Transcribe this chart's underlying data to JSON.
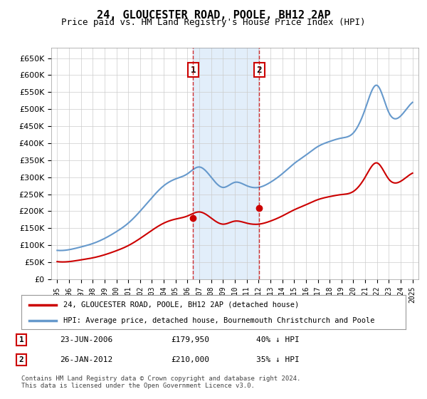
{
  "title": "24, GLOUCESTER ROAD, POOLE, BH12 2AP",
  "subtitle": "Price paid vs. HM Land Registry's House Price Index (HPI)",
  "hpi_color": "#6699cc",
  "price_color": "#cc0000",
  "background_color": "#ffffff",
  "grid_color": "#cccccc",
  "sale1_date_num": 2006.48,
  "sale2_date_num": 2012.07,
  "sale1_price": 179950,
  "sale2_price": 210000,
  "sale1_label": "1",
  "sale2_label": "2",
  "sale1_info": "23-JUN-2006    £179,950    40% ↓ HPI",
  "sale2_info": "26-JAN-2012    £210,000    35% ↓ HPI",
  "legend_line1": "24, GLOUCESTER ROAD, POOLE, BH12 2AP (detached house)",
  "legend_line2": "HPI: Average price, detached house, Bournemouth Christchurch and Poole",
  "footnote": "Contains HM Land Registry data © Crown copyright and database right 2024.\nThis data is licensed under the Open Government Licence v3.0.",
  "ylim_min": 0,
  "ylim_max": 680000,
  "xlim_min": 1994.5,
  "xlim_max": 2025.5
}
